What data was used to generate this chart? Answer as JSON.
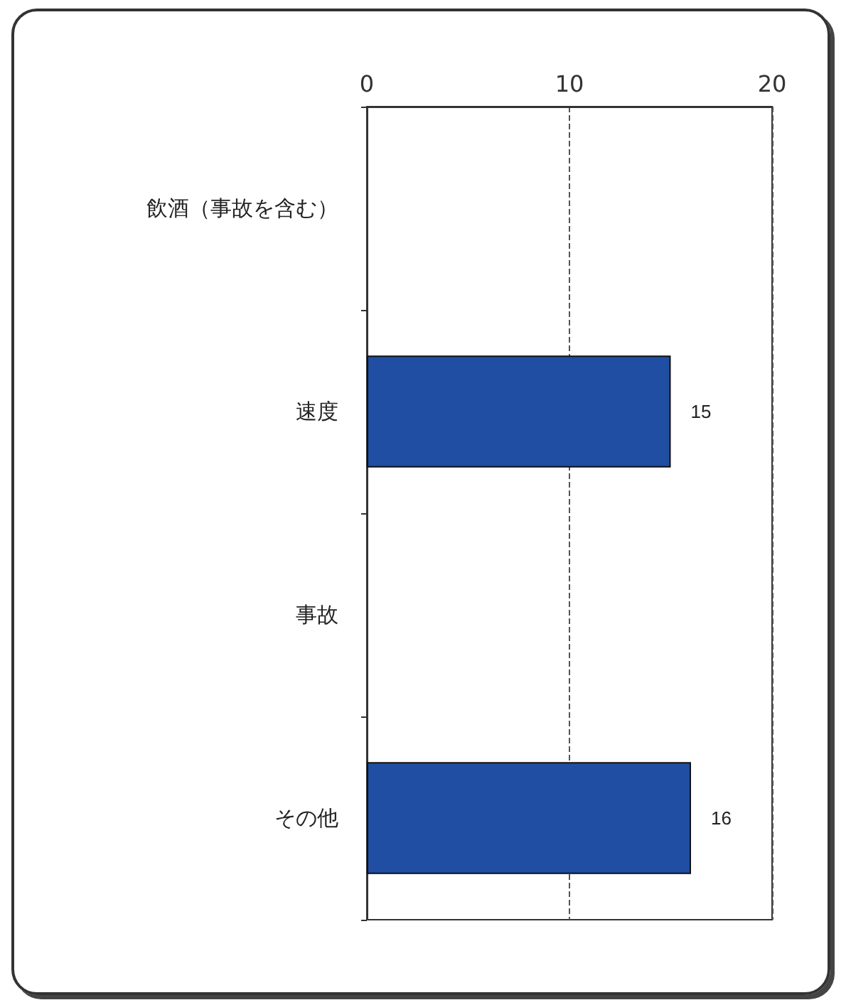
{
  "chart_data": {
    "type": "bar",
    "orientation": "horizontal",
    "categories": [
      "飲酒（事故を含む）",
      "速度",
      "事故",
      "その他"
    ],
    "values": [
      null,
      15,
      null,
      16
    ],
    "color": "#1f4ea3",
    "xlim": [
      0,
      20
    ],
    "xticks": [
      0,
      10,
      20
    ],
    "grid": "x",
    "data_labels": true
  }
}
